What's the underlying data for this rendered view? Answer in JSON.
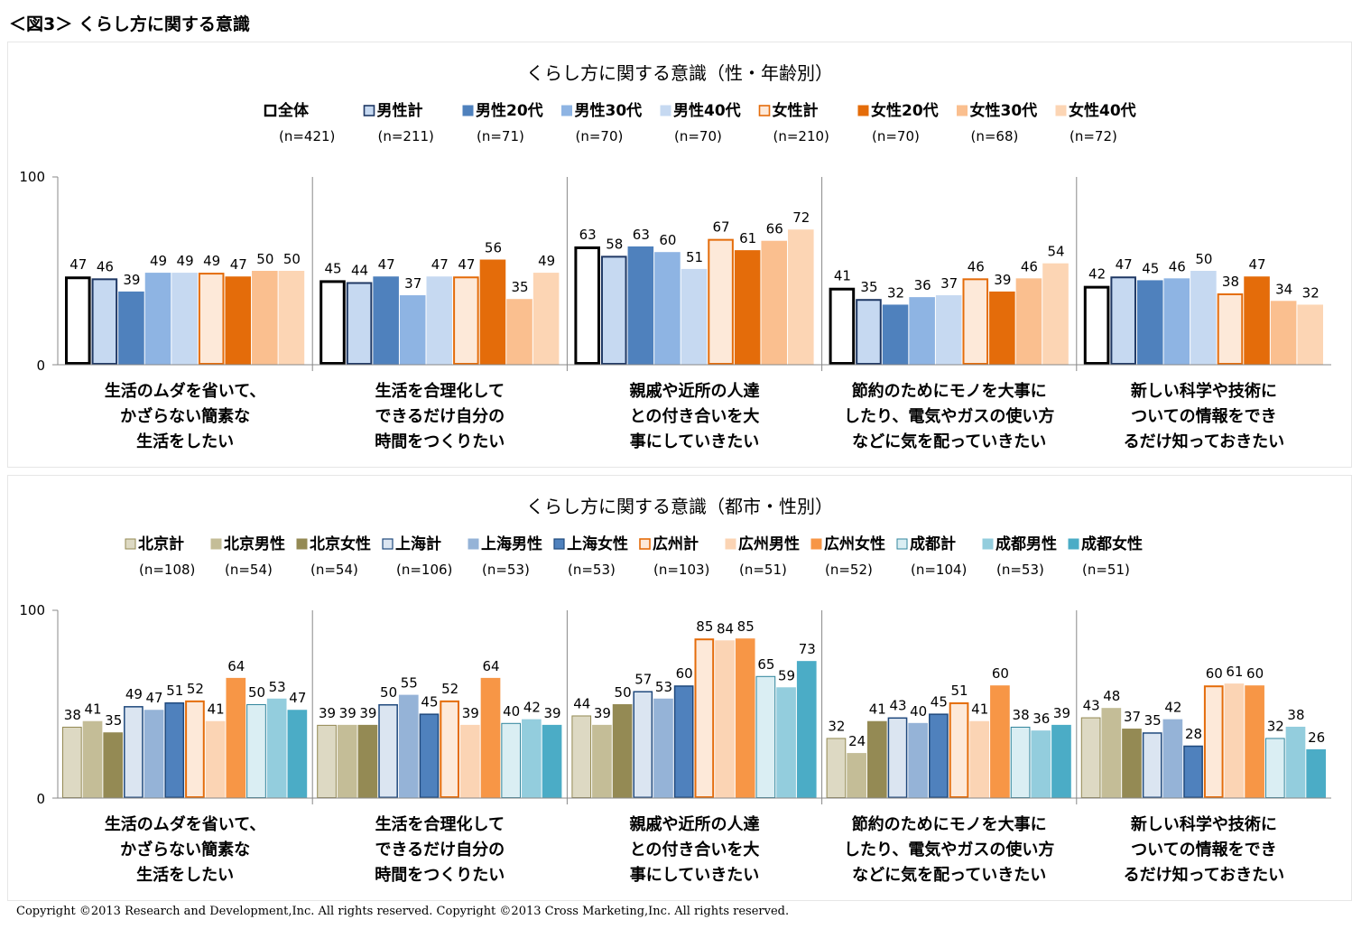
{
  "figure_title": "＜図3＞ くらし方に関する意識",
  "copyright": "Copyright ©2013 Research and Development,Inc. All rights reserved. Copyright ©2013 Cross Marketing,Inc. All rights reserved.",
  "chart_data": [
    {
      "type": "bar",
      "title": "くらし方に関する意識（性・年齢別）",
      "ylim": [
        0,
        100
      ],
      "yticks": [
        "0",
        "100"
      ],
      "grid": false,
      "legend_position": "top",
      "categories": [
        [
          "生活のムダを省いて、",
          "かざらない簡素な",
          "生活をしたい"
        ],
        [
          "生活を合理化して",
          "できるだけ自分の",
          "時間をつくりたい"
        ],
        [
          "親戚や近所の人達",
          "との付き合いを大",
          "事にしていきたい"
        ],
        [
          "節約のためにモノを大事に",
          "したり、電気やガスの使い方",
          "などに気を配っていきたい"
        ],
        [
          "新しい科学や技術に",
          "ついての情報をでき",
          "るだけ知っておきたい"
        ]
      ],
      "series": [
        {
          "name": "全体",
          "n": "(n=421)",
          "fill": "#ffffff",
          "stroke": "#000000",
          "strokeWidth": 3,
          "values": [
            47,
            45,
            63,
            41,
            42
          ]
        },
        {
          "name": "男性計",
          "n": "(n=211)",
          "fill": "#c6d9f1",
          "stroke": "#1f3864",
          "strokeWidth": 2,
          "values": [
            46,
            44,
            58,
            35,
            47
          ]
        },
        {
          "name": "男性20代",
          "n": "(n=71)",
          "fill": "#4f81bd",
          "stroke": "#4f81bd",
          "strokeWidth": 0,
          "values": [
            39,
            47,
            63,
            32,
            45
          ]
        },
        {
          "name": "男性30代",
          "n": "(n=70)",
          "fill": "#8eb4e3",
          "stroke": "#8eb4e3",
          "strokeWidth": 0,
          "values": [
            49,
            37,
            60,
            36,
            46
          ]
        },
        {
          "name": "男性40代",
          "n": "(n=70)",
          "fill": "#c6d9f1",
          "stroke": "#c6d9f1",
          "strokeWidth": 0,
          "values": [
            49,
            47,
            51,
            37,
            50
          ]
        },
        {
          "name": "女性計",
          "n": "(n=210)",
          "fill": "#fde9d9",
          "stroke": "#e46c0a",
          "strokeWidth": 2,
          "values": [
            49,
            47,
            67,
            46,
            38
          ]
        },
        {
          "name": "女性20代",
          "n": "(n=70)",
          "fill": "#e46c0a",
          "stroke": "#e46c0a",
          "strokeWidth": 0,
          "values": [
            47,
            56,
            61,
            39,
            47
          ]
        },
        {
          "name": "女性30代",
          "n": "(n=68)",
          "fill": "#fabf8f",
          "stroke": "#fabf8f",
          "strokeWidth": 0,
          "values": [
            50,
            35,
            66,
            46,
            34
          ]
        },
        {
          "name": "女性40代",
          "n": "(n=72)",
          "fill": "#fcd5b4",
          "stroke": "#fcd5b4",
          "strokeWidth": 0,
          "values": [
            50,
            49,
            72,
            54,
            32
          ]
        }
      ]
    },
    {
      "type": "bar",
      "title": "くらし方に関する意識（都市・性別）",
      "ylim": [
        0,
        100
      ],
      "yticks": [
        "0",
        "100"
      ],
      "grid": false,
      "legend_position": "top",
      "categories": [
        [
          "生活のムダを省いて、",
          "かざらない簡素な",
          "生活をしたい"
        ],
        [
          "生活を合理化して",
          "できるだけ自分の",
          "時間をつくりたい"
        ],
        [
          "親戚や近所の人達",
          "との付き合いを大",
          "事にしていきたい"
        ],
        [
          "節約のためにモノを大事に",
          "したり、電気やガスの使い方",
          "などに気を配っていきたい"
        ],
        [
          "新しい科学や技術に",
          "ついての情報をでき",
          "るだけ知っておきたい"
        ]
      ],
      "series": [
        {
          "name": "北京計",
          "n": "(n=108)",
          "fill": "#ddd9c3",
          "stroke": "#938953",
          "strokeWidth": 1,
          "values": [
            38,
            39,
            44,
            32,
            43
          ]
        },
        {
          "name": "北京男性",
          "n": "(n=54)",
          "fill": "#c4bd97",
          "stroke": "#c4bd97",
          "strokeWidth": 0,
          "values": [
            41,
            39,
            39,
            24,
            48
          ]
        },
        {
          "name": "北京女性",
          "n": "(n=54)",
          "fill": "#948a54",
          "stroke": "#948a54",
          "strokeWidth": 0,
          "values": [
            35,
            39,
            50,
            41,
            37
          ]
        },
        {
          "name": "上海計",
          "n": "(n=106)",
          "fill": "#dbe5f1",
          "stroke": "#1f497d",
          "strokeWidth": 1.5,
          "values": [
            49,
            50,
            57,
            43,
            35
          ]
        },
        {
          "name": "上海男性",
          "n": "(n=53)",
          "fill": "#95b3d7",
          "stroke": "#95b3d7",
          "strokeWidth": 0,
          "values": [
            47,
            55,
            53,
            40,
            42
          ]
        },
        {
          "name": "上海女性",
          "n": "(n=53)",
          "fill": "#4f81bd",
          "stroke": "#1f497d",
          "strokeWidth": 1.5,
          "values": [
            51,
            45,
            60,
            45,
            28
          ]
        },
        {
          "name": "広州計",
          "n": "(n=103)",
          "fill": "#fde9d9",
          "stroke": "#e46c0a",
          "strokeWidth": 2,
          "values": [
            52,
            52,
            85,
            51,
            60
          ]
        },
        {
          "name": "広州男性",
          "n": "(n=51)",
          "fill": "#fbd4b4",
          "stroke": "#fbd4b4",
          "strokeWidth": 0,
          "values": [
            41,
            39,
            84,
            41,
            61
          ]
        },
        {
          "name": "広州女性",
          "n": "(n=52)",
          "fill": "#f79646",
          "stroke": "#f79646",
          "strokeWidth": 0,
          "values": [
            64,
            64,
            85,
            60,
            60
          ]
        },
        {
          "name": "成都計",
          "n": "(n=104)",
          "fill": "#daeef3",
          "stroke": "#31859c",
          "strokeWidth": 1,
          "values": [
            50,
            40,
            65,
            38,
            32
          ]
        },
        {
          "name": "成都男性",
          "n": "(n=53)",
          "fill": "#93cddd",
          "stroke": "#93cddd",
          "strokeWidth": 0,
          "values": [
            53,
            42,
            59,
            36,
            38
          ]
        },
        {
          "name": "成都女性",
          "n": "(n=51)",
          "fill": "#4bacc6",
          "stroke": "#4bacc6",
          "strokeWidth": 0,
          "values": [
            47,
            39,
            73,
            39,
            26
          ]
        }
      ]
    }
  ]
}
